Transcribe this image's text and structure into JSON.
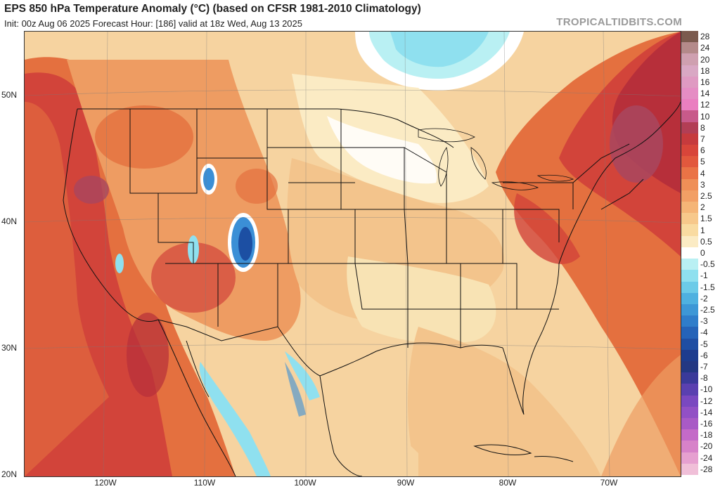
{
  "header": {
    "title": "EPS 850 hPa Temperature Anomaly (°C) (based on CFSR 1981-2010 Climatology)",
    "subtitle": "Init: 00z Aug 06 2025   Forecast Hour: [186]   valid at 18z Wed, Aug 13 2025",
    "brand": "TROPICALTIDBITS.COM"
  },
  "map": {
    "lat_labels": [
      "50N",
      "40N",
      "30N",
      "20N"
    ],
    "lon_labels": [
      "120W",
      "110W",
      "100W",
      "90W",
      "80W",
      "70W"
    ],
    "colors": {
      "pale": "#f8e3b4",
      "light_orange": "#f3c48c",
      "orange": "#ee9c62",
      "red_orange": "#e4703f",
      "red": "#d2443a",
      "dark_red": "#b72f3a",
      "magenta": "#a9465f",
      "white": "#ffffff",
      "light_blue": "#8fe0ef",
      "blue": "#3b8fd6",
      "dark_blue": "#1c4fa3",
      "boundary": "#111111"
    }
  },
  "colorbar": {
    "labels": [
      "28",
      "24",
      "20",
      "18",
      "16",
      "14",
      "12",
      "10",
      "8",
      "7",
      "6",
      "5",
      "4",
      "3",
      "2.5",
      "2",
      "1.5",
      "1",
      "0.5",
      "0",
      "-0.5",
      "-1",
      "-1.5",
      "-2",
      "-2.5",
      "-3",
      "-4",
      "-5",
      "-6",
      "-7",
      "-8",
      "-10",
      "-12",
      "-14",
      "-16",
      "-18",
      "-20",
      "-24",
      "-28"
    ],
    "colors": [
      "#7b5a4e",
      "#b48a8a",
      "#cfa0b0",
      "#d9a8c4",
      "#df9ac2",
      "#e58dc4",
      "#ea7fc0",
      "#c85a8a",
      "#b23e55",
      "#c63a3d",
      "#d8453a",
      "#e2583d",
      "#ea7346",
      "#ef8f57",
      "#f29f65",
      "#f5b577",
      "#f7c88b",
      "#f9dba1",
      "#fbebc4",
      "#ffffff",
      "#b9f0f3",
      "#8fe0ef",
      "#6ccbe8",
      "#4fb1e0",
      "#3d97d6",
      "#2f7dca",
      "#2563b8",
      "#1f4ea3",
      "#1d3c8e",
      "#233883",
      "#3a3a9a",
      "#5a40b0",
      "#7a48c0",
      "#9250c5",
      "#a95ac6",
      "#c46ac8",
      "#d782c9",
      "#e6a0d0",
      "#f0bfd8"
    ]
  }
}
